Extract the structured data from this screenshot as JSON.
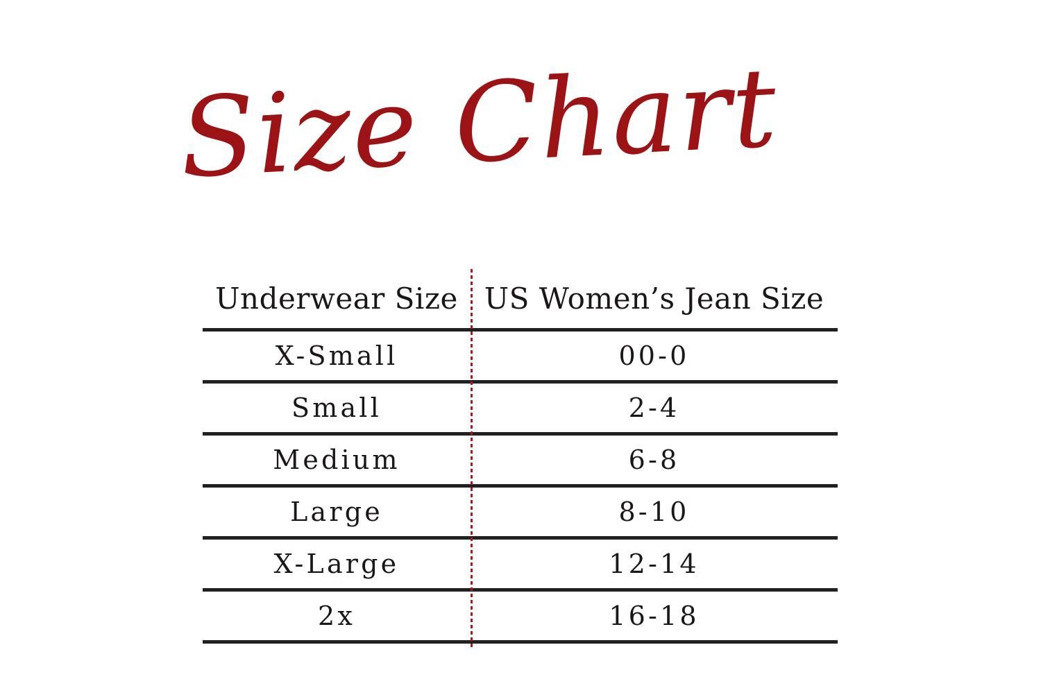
{
  "title": {
    "text": "Size Chart"
  },
  "colors": {
    "background": "#ffffff",
    "title_red": "#9c1315",
    "divider_red": "#b01818",
    "rule": "#232021",
    "text": "#1b1718"
  },
  "table": {
    "headers": [
      "Underwear Size",
      "US Women’s Jean Size"
    ],
    "rows": [
      {
        "underwear_size": "X-Small",
        "jean_size": "00-0"
      },
      {
        "underwear_size": "Small",
        "jean_size": "2-4"
      },
      {
        "underwear_size": "Medium",
        "jean_size": "6-8"
      },
      {
        "underwear_size": "Large",
        "jean_size": "8-10"
      },
      {
        "underwear_size": "X-Large",
        "jean_size": "12-14"
      },
      {
        "underwear_size": "2x",
        "jean_size": "16-18"
      }
    ]
  },
  "chart_data": {
    "type": "table",
    "title": "Size Chart",
    "columns": [
      "Underwear Size",
      "US Women’s Jean Size"
    ],
    "rows": [
      [
        "X-Small",
        "00-0"
      ],
      [
        "Small",
        "2-4"
      ],
      [
        "Medium",
        "6-8"
      ],
      [
        "Large",
        "8-10"
      ],
      [
        "X-Large",
        "12-14"
      ],
      [
        "2x",
        "16-18"
      ]
    ]
  }
}
